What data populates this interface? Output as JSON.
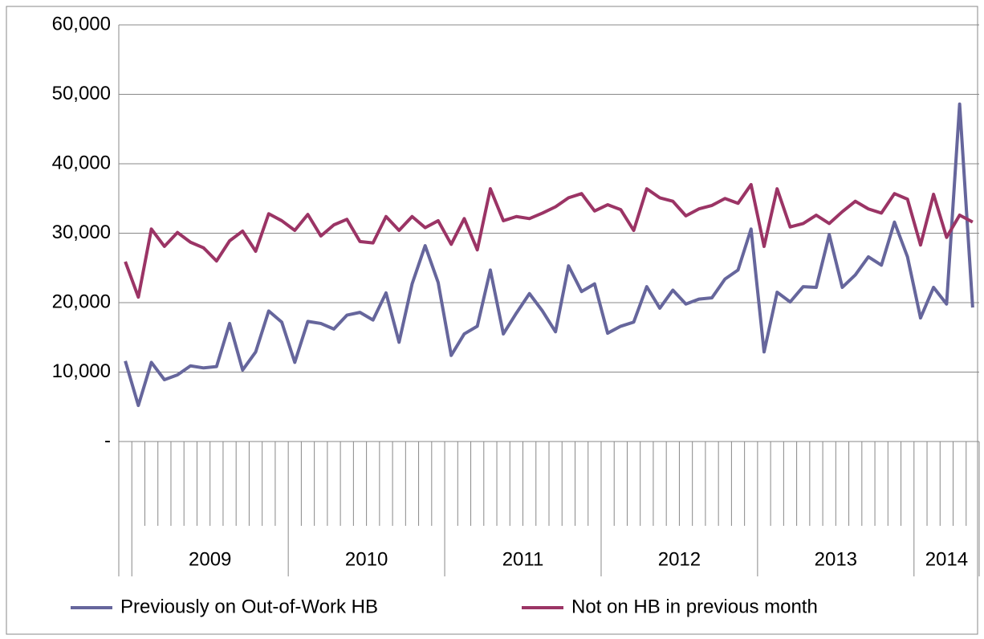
{
  "chart_data": {
    "type": "line",
    "categories": [
      null,
      null,
      null,
      null,
      null,
      null,
      null,
      null,
      null,
      null,
      null,
      null,
      null,
      null,
      null,
      null,
      null,
      null,
      null,
      null,
      null,
      null,
      null,
      null,
      null,
      null,
      null,
      null,
      null,
      null,
      null,
      null,
      null,
      null,
      null,
      null,
      null,
      null,
      null,
      null,
      null,
      null,
      null,
      null,
      null,
      null,
      null,
      null,
      null,
      null,
      null,
      null,
      null,
      null,
      null,
      null,
      null,
      null,
      null,
      null,
      null,
      null,
      null,
      null,
      null,
      null
    ],
    "groups": [
      {
        "label": null,
        "count": 1
      },
      {
        "label": "2009",
        "count": 12
      },
      {
        "label": "2010",
        "count": 12
      },
      {
        "label": "2011",
        "count": 12
      },
      {
        "label": "2012",
        "count": 12
      },
      {
        "label": "2013",
        "count": 12
      },
      {
        "label": "2014",
        "count": 5
      }
    ],
    "series": [
      {
        "name": "Previously on Out-of-Work HB",
        "color": "#66669c",
        "values": [
          11600,
          5200,
          11400,
          8900,
          9600,
          10900,
          10600,
          10800,
          17000,
          10300,
          12900,
          18800,
          17200,
          11400,
          17300,
          17000,
          16200,
          18200,
          18600,
          17500,
          21400,
          14300,
          22700,
          28200,
          22900,
          12400,
          15500,
          16600,
          24700,
          15500,
          18500,
          21300,
          18800,
          15800,
          25300,
          21600,
          22700,
          15600,
          16600,
          17200,
          22300,
          19200,
          21800,
          19800,
          20500,
          20700,
          23400,
          24700,
          30600,
          12900,
          21500,
          20100,
          22300,
          22200,
          29800,
          22200,
          24000,
          26600,
          25400,
          31600,
          26600,
          17800,
          22200,
          19800,
          48600,
          19300
        ]
      },
      {
        "name": "Not on HB in previous month",
        "color": "#9b3465",
        "values": [
          25900,
          20800,
          30600,
          28100,
          30100,
          28700,
          27900,
          26000,
          28900,
          30300,
          27400,
          32800,
          31800,
          30400,
          32700,
          29600,
          31200,
          32000,
          28800,
          28600,
          32400,
          30400,
          32400,
          30800,
          31800,
          28400,
          32100,
          27600,
          36400,
          31800,
          32400,
          32100,
          32900,
          33800,
          35100,
          35700,
          33200,
          34100,
          33400,
          30400,
          36400,
          35100,
          34600,
          32500,
          33500,
          34000,
          35000,
          34300,
          37000,
          28100,
          36400,
          30900,
          31400,
          32600,
          31400,
          33100,
          34600,
          33500,
          32900,
          35700,
          34900,
          28300,
          35600,
          29400,
          32600,
          31600
        ]
      }
    ],
    "ylim": [
      0,
      60000
    ],
    "yticks": [
      {
        "value": 0,
        "label": "-"
      },
      {
        "value": 10000,
        "label": "10,000"
      },
      {
        "value": 20000,
        "label": "20,000"
      },
      {
        "value": 30000,
        "label": "30,000"
      },
      {
        "value": 40000,
        "label": "40,000"
      },
      {
        "value": 50000,
        "label": "50,000"
      },
      {
        "value": 60000,
        "label": "60,000"
      }
    ],
    "grid": true,
    "legend": "bottom"
  }
}
